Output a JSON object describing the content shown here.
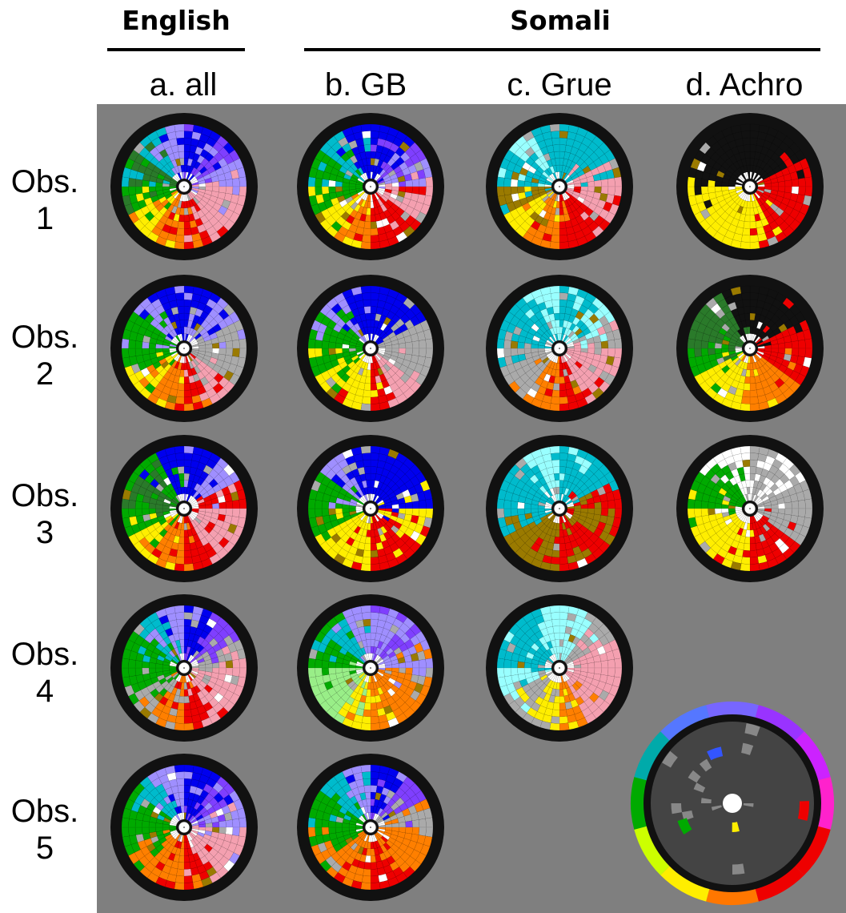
{
  "headers": {
    "english": "English",
    "somali": "Somali"
  },
  "columns": [
    "a. all",
    "b. GB",
    "c. Grue",
    "d. Achro"
  ],
  "rows": [
    {
      "obs": "Obs.",
      "num": "1"
    },
    {
      "obs": "Obs.",
      "num": "2"
    },
    {
      "obs": "Obs.",
      "num": "3"
    },
    {
      "obs": "Obs.",
      "num": "4"
    },
    {
      "obs": "Obs.",
      "num": "5"
    }
  ],
  "colors": {
    "background": "#7f7f7f",
    "blue": "#0000ee",
    "violet": "#7f3fff",
    "lavender": "#9f8fff",
    "pink": "#f4a0b0",
    "red": "#ee0000",
    "orange": "#ff7f00",
    "yellow": "#ffee00",
    "green": "#00aa00",
    "dark_green": "#2a7a2a",
    "light_green": "#99ee88",
    "cyan": "#00bbcc",
    "light_cyan": "#99ffff",
    "grey": "#aaaaaa",
    "white": "#ffffff",
    "black": "#111111",
    "brown": "#9a7a00"
  },
  "wheels": [
    {
      "id": "1a",
      "palette": [
        "blue",
        "violet",
        "lavender",
        "pink",
        "pink",
        "red",
        "orange",
        "yellow",
        "green",
        "dark_green",
        "cyan",
        "lavender"
      ]
    },
    {
      "id": "1b",
      "palette": [
        "blue",
        "violet",
        "lavender",
        "pink",
        "red",
        "red",
        "orange",
        "yellow",
        "green",
        "green",
        "cyan",
        "blue"
      ]
    },
    {
      "id": "1c",
      "palette": [
        "cyan",
        "cyan",
        "pink",
        "pink",
        "red",
        "red",
        "orange",
        "yellow",
        "brown",
        "cyan",
        "light_cyan",
        "cyan"
      ]
    },
    {
      "id": "1d",
      "palette": [
        "black",
        "black",
        "red",
        "red",
        "red",
        "yellow",
        "yellow",
        "yellow",
        "yellow",
        "black",
        "black",
        "black"
      ]
    },
    {
      "id": "2a",
      "palette": [
        "blue",
        "lavender",
        "grey",
        "grey",
        "pink",
        "red",
        "orange",
        "yellow",
        "green",
        "green",
        "lavender",
        "blue"
      ]
    },
    {
      "id": "2b",
      "palette": [
        "blue",
        "blue",
        "grey",
        "grey",
        "pink",
        "red",
        "yellow",
        "yellow",
        "green",
        "green",
        "lavender",
        "blue"
      ]
    },
    {
      "id": "2c",
      "palette": [
        "cyan",
        "light_cyan",
        "grey",
        "pink",
        "pink",
        "red",
        "orange",
        "grey",
        "grey",
        "cyan",
        "cyan",
        "light_cyan"
      ]
    },
    {
      "id": "2d",
      "palette": [
        "black",
        "black",
        "red",
        "red",
        "orange",
        "orange",
        "yellow",
        "yellow",
        "green",
        "dark_green",
        "dark_green",
        "black"
      ]
    },
    {
      "id": "3a",
      "palette": [
        "blue",
        "lavender",
        "red",
        "pink",
        "pink",
        "red",
        "orange",
        "yellow",
        "green",
        "dark_green",
        "green",
        "blue"
      ]
    },
    {
      "id": "3b",
      "palette": [
        "blue",
        "blue",
        "blue",
        "yellow",
        "red",
        "red",
        "yellow",
        "yellow",
        "green",
        "green",
        "lavender",
        "blue"
      ]
    },
    {
      "id": "3c",
      "palette": [
        "cyan",
        "cyan",
        "red",
        "brown",
        "red",
        "red",
        "brown",
        "brown",
        "cyan",
        "cyan",
        "cyan",
        "light_cyan"
      ]
    },
    {
      "id": "3d",
      "palette": [
        "grey",
        "white",
        "grey",
        "grey",
        "red",
        "red",
        "yellow",
        "yellow",
        "yellow",
        "green",
        "green",
        "white"
      ]
    },
    {
      "id": "4a",
      "palette": [
        "blue",
        "violet",
        "grey",
        "pink",
        "pink",
        "red",
        "orange",
        "grey",
        "green",
        "green",
        "cyan",
        "lavender"
      ]
    },
    {
      "id": "4b",
      "palette": [
        "lavender",
        "violet",
        "lavender",
        "orange",
        "orange",
        "orange",
        "yellow",
        "light_green",
        "light_green",
        "green",
        "cyan",
        "lavender"
      ]
    },
    {
      "id": "4c",
      "palette": [
        "light_cyan",
        "grey",
        "pink",
        "pink",
        "pink",
        "orange",
        "yellow",
        "grey",
        "light_cyan",
        "cyan",
        "cyan",
        "light_cyan"
      ]
    },
    {
      "id": "5a",
      "palette": [
        "blue",
        "violet",
        "lavender",
        "pink",
        "pink",
        "red",
        "orange",
        "orange",
        "green",
        "green",
        "cyan",
        "lavender"
      ]
    },
    {
      "id": "5b",
      "palette": [
        "blue",
        "violet",
        "grey",
        "orange",
        "orange",
        "red",
        "orange",
        "orange",
        "green",
        "green",
        "cyan",
        "lavender"
      ]
    }
  ],
  "legend": {
    "ring_colors": [
      "#7766ff",
      "#9933ff",
      "#cc22ff",
      "#ff22cc",
      "#ee0000",
      "#ee0000",
      "#ff7700",
      "#ffee00",
      "#ccff00",
      "#00aa00",
      "#00aaaa",
      "#5577ff"
    ],
    "dot_colors": [
      "#3355ff",
      "#00aa00",
      "#ffee00",
      "#ee0000"
    ]
  }
}
